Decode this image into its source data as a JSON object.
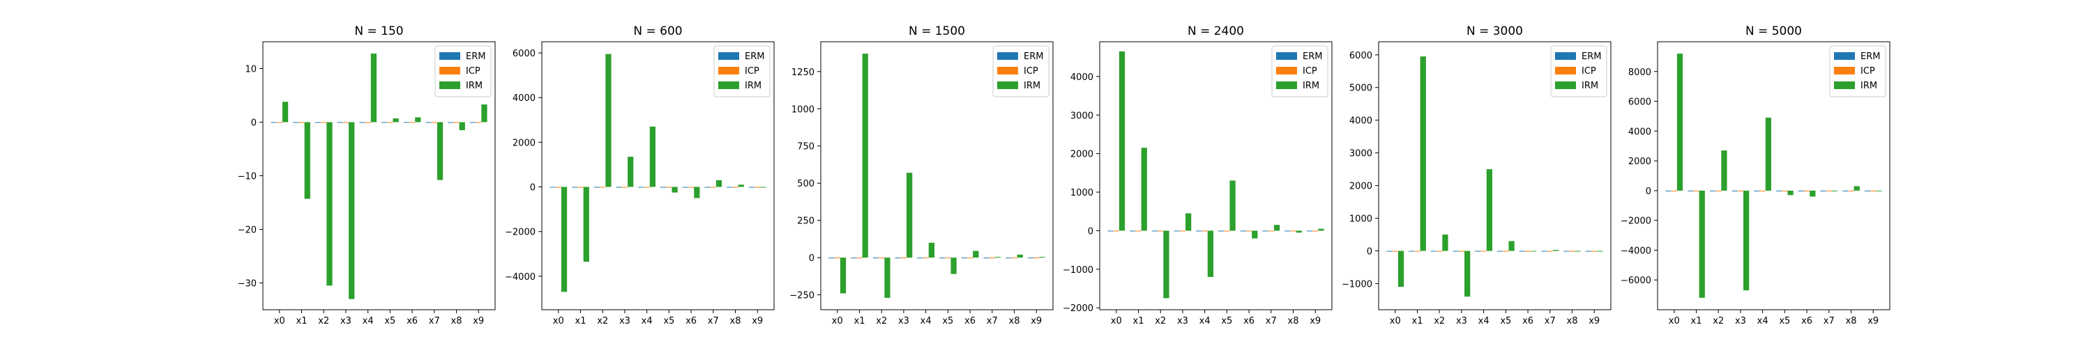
{
  "colors": {
    "ERM": "#1f77b4",
    "ICP": "#ff7f0e",
    "IRM": "#2ca02c"
  },
  "chart_data": [
    {
      "type": "bar",
      "title": "N = 150",
      "categories": [
        "x0",
        "x1",
        "x2",
        "x3",
        "x4",
        "x5",
        "x6",
        "x7",
        "x8",
        "x9"
      ],
      "ylim": [
        -35,
        15
      ],
      "yticks": [
        -30,
        -20,
        -10,
        0,
        10
      ],
      "legend_position": "upper right",
      "series": [
        {
          "name": "ERM",
          "values": [
            0,
            0,
            0,
            0,
            0,
            0,
            0,
            0,
            0,
            0
          ]
        },
        {
          "name": "ICP",
          "values": [
            0,
            0,
            0,
            0,
            0,
            0,
            0,
            0,
            0,
            0
          ]
        },
        {
          "name": "IRM",
          "values": [
            3.8,
            -14.3,
            -30.5,
            -33,
            12.8,
            0.7,
            0.9,
            -10.8,
            -1.5,
            3.3
          ]
        }
      ]
    },
    {
      "type": "bar",
      "title": "N = 600",
      "categories": [
        "x0",
        "x1",
        "x2",
        "x3",
        "x4",
        "x5",
        "x6",
        "x7",
        "x8",
        "x9"
      ],
      "ylim": [
        -5500,
        6500
      ],
      "yticks": [
        -4000,
        -2000,
        0,
        2000,
        4000,
        6000
      ],
      "legend_position": "upper right",
      "series": [
        {
          "name": "ERM",
          "values": [
            0,
            0,
            0,
            0,
            0,
            0,
            0,
            0,
            0,
            0
          ]
        },
        {
          "name": "ICP",
          "values": [
            0,
            0,
            0,
            0,
            0,
            0,
            0,
            0,
            0,
            0
          ]
        },
        {
          "name": "IRM",
          "values": [
            -4700,
            -3350,
            5950,
            1350,
            2700,
            -250,
            -500,
            300,
            100,
            0
          ]
        }
      ]
    },
    {
      "type": "bar",
      "title": "N = 1500",
      "categories": [
        "x0",
        "x1",
        "x2",
        "x3",
        "x4",
        "x5",
        "x6",
        "x7",
        "x8",
        "x9"
      ],
      "ylim": [
        -350,
        1450
      ],
      "yticks": [
        -250,
        0,
        250,
        500,
        750,
        1000,
        1250
      ],
      "legend_position": "upper right",
      "series": [
        {
          "name": "ERM",
          "values": [
            0,
            0,
            0,
            0,
            0,
            0,
            0,
            0,
            0,
            0
          ]
        },
        {
          "name": "ICP",
          "values": [
            0,
            0,
            0,
            0,
            0,
            0,
            0,
            0,
            0,
            0
          ]
        },
        {
          "name": "IRM",
          "values": [
            -240,
            1370,
            -270,
            570,
            100,
            -110,
            45,
            5,
            20,
            5
          ]
        }
      ]
    },
    {
      "type": "bar",
      "title": "N = 2400",
      "categories": [
        "x0",
        "x1",
        "x2",
        "x3",
        "x4",
        "x5",
        "x6",
        "x7",
        "x8",
        "x9"
      ],
      "ylim": [
        -2050,
        4900
      ],
      "yticks": [
        -2000,
        -1000,
        0,
        1000,
        2000,
        3000,
        4000
      ],
      "legend_position": "upper right",
      "series": [
        {
          "name": "ERM",
          "values": [
            0,
            0,
            0,
            0,
            0,
            0,
            0,
            0,
            0,
            0
          ]
        },
        {
          "name": "ICP",
          "values": [
            0,
            0,
            0,
            0,
            0,
            0,
            0,
            0,
            0,
            0
          ]
        },
        {
          "name": "IRM",
          "values": [
            4650,
            2150,
            -1750,
            450,
            -1200,
            1300,
            -200,
            150,
            -50,
            50
          ]
        }
      ]
    },
    {
      "type": "bar",
      "title": "N = 3000",
      "categories": [
        "x0",
        "x1",
        "x2",
        "x3",
        "x4",
        "x5",
        "x6",
        "x7",
        "x8",
        "x9"
      ],
      "ylim": [
        -1800,
        6400
      ],
      "yticks": [
        -1000,
        0,
        1000,
        2000,
        3000,
        4000,
        5000,
        6000
      ],
      "legend_position": "upper right",
      "series": [
        {
          "name": "ERM",
          "values": [
            0,
            0,
            0,
            0,
            0,
            0,
            0,
            0,
            0,
            0
          ]
        },
        {
          "name": "ICP",
          "values": [
            0,
            0,
            0,
            0,
            0,
            0,
            0,
            0,
            0,
            0
          ]
        },
        {
          "name": "IRM",
          "values": [
            -1100,
            5950,
            500,
            -1400,
            2500,
            300,
            0,
            30,
            0,
            0
          ]
        }
      ]
    },
    {
      "type": "bar",
      "title": "N = 5000",
      "categories": [
        "x0",
        "x1",
        "x2",
        "x3",
        "x4",
        "x5",
        "x6",
        "x7",
        "x8",
        "x9"
      ],
      "ylim": [
        -8000,
        10000
      ],
      "yticks": [
        -6000,
        -4000,
        -2000,
        0,
        2000,
        4000,
        6000,
        8000
      ],
      "legend_position": "upper right",
      "series": [
        {
          "name": "ERM",
          "values": [
            0,
            0,
            0,
            0,
            0,
            0,
            0,
            0,
            0,
            0
          ]
        },
        {
          "name": "ICP",
          "values": [
            0,
            0,
            0,
            0,
            0,
            0,
            0,
            0,
            0,
            0
          ]
        },
        {
          "name": "IRM",
          "values": [
            9200,
            -7200,
            2700,
            -6700,
            4900,
            -300,
            -400,
            0,
            300,
            0
          ]
        }
      ]
    }
  ]
}
